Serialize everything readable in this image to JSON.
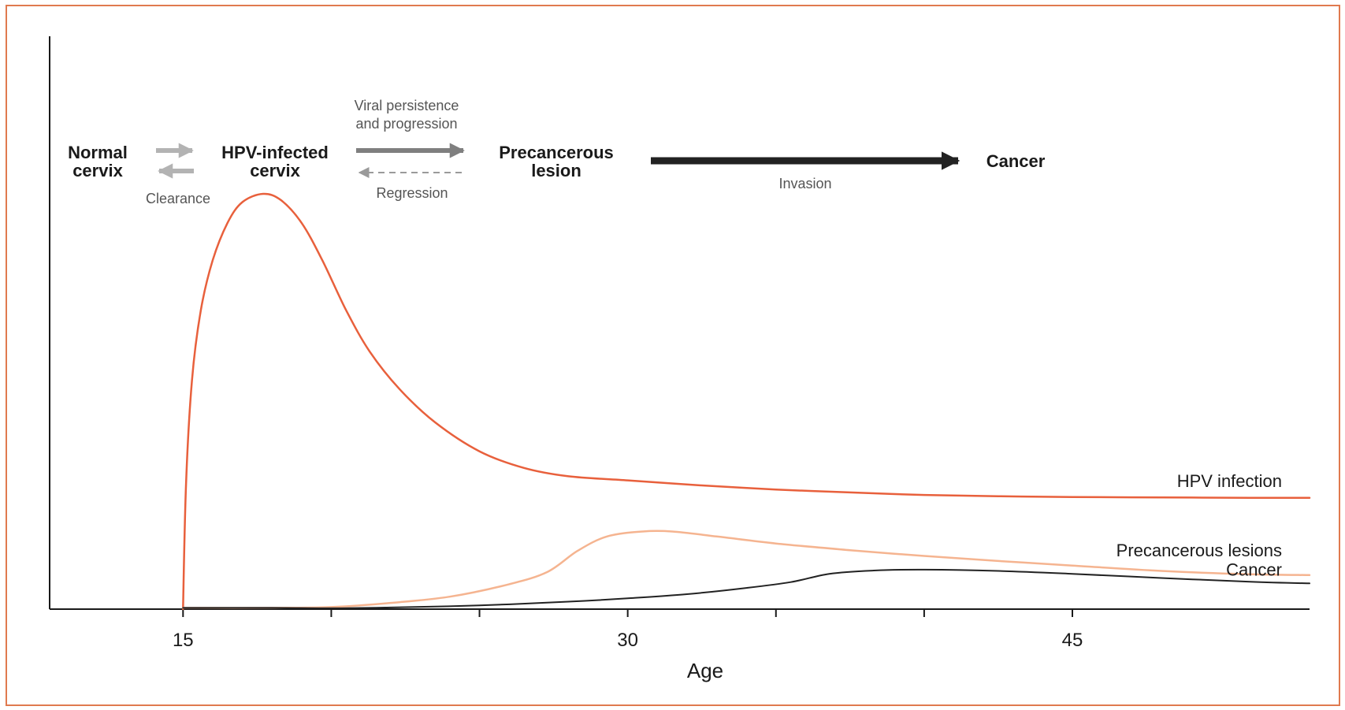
{
  "chart_data": {
    "type": "line",
    "title": "",
    "xlabel": "Age",
    "ylabel": "",
    "xlim": [
      10.5,
      53
    ],
    "ylim": [
      0,
      100
    ],
    "x_ticks": [
      15,
      30,
      45
    ],
    "minor_ticks": [
      20,
      25,
      35,
      40
    ],
    "grid": false,
    "series": [
      {
        "name": "HPV infection",
        "color": "#e8603c",
        "width": 2.5,
        "points": [
          [
            15,
            0
          ],
          [
            15.1,
            30
          ],
          [
            15.3,
            55
          ],
          [
            15.6,
            72
          ],
          [
            16,
            84
          ],
          [
            16.5,
            93
          ],
          [
            17,
            98
          ],
          [
            17.7,
            100
          ],
          [
            18.3,
            98.5
          ],
          [
            19,
            93
          ],
          [
            19.7,
            84
          ],
          [
            20.5,
            72
          ],
          [
            21.3,
            62
          ],
          [
            22.3,
            53
          ],
          [
            23.5,
            45
          ],
          [
            25,
            38
          ],
          [
            26.5,
            34
          ],
          [
            28,
            32
          ],
          [
            30,
            31
          ],
          [
            32.5,
            29.8
          ],
          [
            35,
            28.8
          ],
          [
            37.5,
            28.1
          ],
          [
            40,
            27.5
          ],
          [
            42.5,
            27.2
          ],
          [
            45,
            27
          ],
          [
            48,
            26.9
          ],
          [
            51,
            26.8
          ],
          [
            53,
            26.8
          ]
        ]
      },
      {
        "name": "Precancerous lesions",
        "color": "#f5b490",
        "width": 2.5,
        "points": [
          [
            15,
            0.3
          ],
          [
            18,
            0.3
          ],
          [
            20,
            0.5
          ],
          [
            22,
            1.5
          ],
          [
            24,
            3
          ],
          [
            26,
            6
          ],
          [
            27.3,
            9
          ],
          [
            28.3,
            14
          ],
          [
            29.3,
            17.5
          ],
          [
            30.5,
            18.7
          ],
          [
            31.5,
            18.7
          ],
          [
            33,
            17.5
          ],
          [
            35,
            15.8
          ],
          [
            37.5,
            14.2
          ],
          [
            40,
            12.8
          ],
          [
            42.5,
            11.6
          ],
          [
            45,
            10.5
          ],
          [
            48,
            9.2
          ],
          [
            51,
            8.4
          ],
          [
            53,
            8.2
          ]
        ]
      },
      {
        "name": "Cancer",
        "color": "#222222",
        "width": 2,
        "points": [
          [
            15,
            0.3
          ],
          [
            18,
            0.3
          ],
          [
            20,
            0.2
          ],
          [
            22,
            0.4
          ],
          [
            25,
            0.9
          ],
          [
            28,
            1.8
          ],
          [
            30,
            2.6
          ],
          [
            32,
            3.6
          ],
          [
            34,
            5.1
          ],
          [
            35.5,
            6.5
          ],
          [
            36.8,
            8.5
          ],
          [
            38.3,
            9.3
          ],
          [
            40,
            9.5
          ],
          [
            42.5,
            9.2
          ],
          [
            45,
            8.5
          ],
          [
            48,
            7.5
          ],
          [
            51,
            6.6
          ],
          [
            53,
            6.2
          ]
        ]
      }
    ],
    "annotations": {
      "stages": [
        {
          "lines": [
            "Normal",
            "cervix"
          ]
        },
        {
          "lines": [
            "HPV-infected",
            "cervix"
          ]
        },
        {
          "lines": [
            "Precancerous",
            "lesion"
          ]
        },
        {
          "lines": [
            "Cancer"
          ]
        }
      ],
      "transitions": [
        {
          "lines": [
            "Clearance"
          ]
        },
        {
          "lines": [
            "Viral persistence",
            "and progression"
          ]
        },
        {
          "lines": [
            "Regression"
          ]
        },
        {
          "lines": [
            "Invasion"
          ]
        }
      ]
    }
  }
}
